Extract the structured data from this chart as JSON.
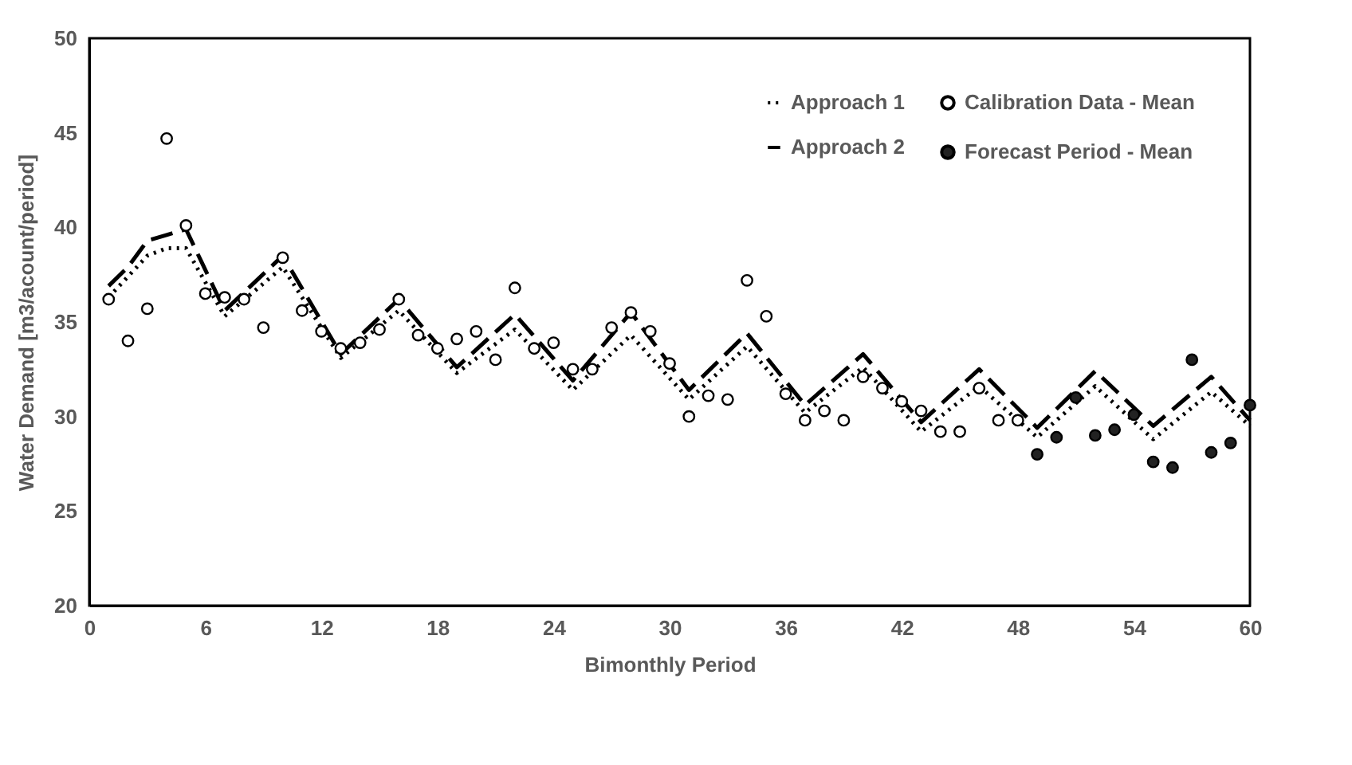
{
  "chart_data": {
    "type": "scatter",
    "xlabel": "Bimonthly Period",
    "ylabel": "Water Demand [m3/acount/period]",
    "xlim": [
      0,
      60
    ],
    "xticks": [
      0,
      6,
      12,
      18,
      24,
      30,
      36,
      42,
      48,
      54,
      60
    ],
    "ylim": [
      20,
      50
    ],
    "yticks": [
      20,
      25,
      30,
      35,
      40,
      45,
      50
    ],
    "grid": false,
    "legend": "top right",
    "series": [
      {
        "name": "Calibration Data - Mean",
        "marker": "circle",
        "color": "#ffffff",
        "x": [
          1,
          2,
          3,
          4,
          5,
          6,
          7,
          8,
          9,
          10,
          11,
          12,
          13,
          14,
          15,
          16,
          17,
          18,
          19,
          20,
          21,
          22,
          23,
          24,
          25,
          26,
          27,
          28,
          29,
          30,
          31,
          32,
          33,
          34,
          35,
          36,
          37,
          38,
          39,
          40,
          41,
          42,
          43,
          44,
          45,
          46,
          47,
          48
        ],
        "values": [
          36.2,
          34.0,
          35.7,
          44.7,
          40.1,
          36.5,
          36.3,
          36.2,
          34.7,
          38.4,
          35.6,
          34.5,
          33.6,
          33.9,
          34.6,
          36.2,
          34.3,
          33.6,
          34.1,
          34.5,
          33.0,
          36.8,
          33.6,
          33.9,
          32.5,
          32.5,
          34.7,
          35.5,
          34.5,
          32.8,
          30.0,
          31.1,
          30.9,
          37.2,
          35.3,
          31.2,
          29.8,
          30.3,
          29.8,
          32.1,
          31.5,
          30.8,
          30.3,
          29.2,
          29.2,
          31.5,
          29.8,
          29.8
        ]
      },
      {
        "name": "Forecast Period - Mean",
        "marker": "circle",
        "color": "#222222",
        "x": [
          49,
          50,
          51,
          52,
          53,
          54,
          55,
          56,
          57,
          58,
          59,
          60
        ],
        "values": [
          28.0,
          28.9,
          31.0,
          29.0,
          29.3,
          30.1,
          27.6,
          27.3,
          33.0,
          28.1,
          28.6,
          30.6
        ]
      },
      {
        "name": "Approach  1",
        "type": "line",
        "line_style": "dotted",
        "color": "#000000",
        "x": [
          1,
          2,
          3,
          4,
          5,
          7,
          10,
          13,
          16,
          19,
          22,
          25,
          28,
          31,
          34,
          37,
          40,
          43,
          46,
          49,
          52,
          55,
          58,
          60
        ],
        "values": [
          36.3,
          37.4,
          38.5,
          38.9,
          38.9,
          35.3,
          37.9,
          33.1,
          35.6,
          32.3,
          34.6,
          31.4,
          34.3,
          30.9,
          33.7,
          30.2,
          32.6,
          29.2,
          31.6,
          28.9,
          31.6,
          28.8,
          31.3,
          29.5
        ]
      },
      {
        "name": "Approach 2",
        "type": "line",
        "line_style": "dashed",
        "color": "#000000",
        "x": [
          1,
          2,
          3,
          4,
          5,
          7,
          10,
          13,
          16,
          19,
          22,
          25,
          28,
          31,
          34,
          37,
          40,
          43,
          46,
          49,
          52,
          55,
          58,
          60
        ],
        "values": [
          36.9,
          37.9,
          39.3,
          39.6,
          39.9,
          35.6,
          38.5,
          33.3,
          36.2,
          32.6,
          35.4,
          31.9,
          35.5,
          31.4,
          34.4,
          30.6,
          33.3,
          29.7,
          32.5,
          29.4,
          32.4,
          29.5,
          32.1,
          29.8
        ]
      }
    ]
  }
}
